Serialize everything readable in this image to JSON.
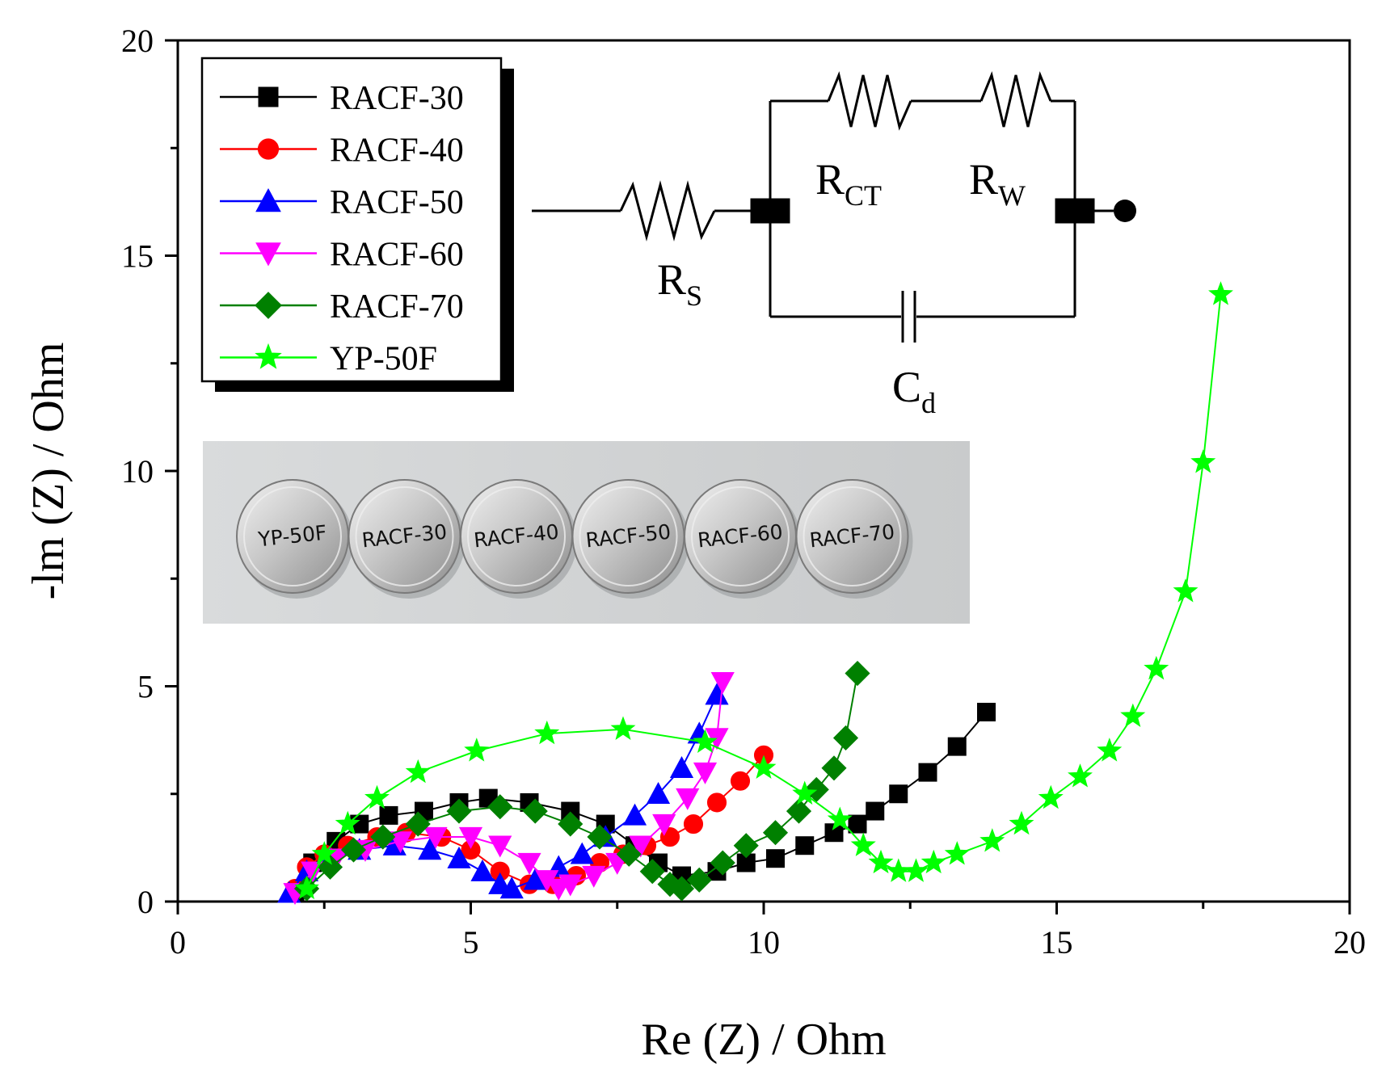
{
  "chart_data": {
    "type": "scatter",
    "title": "",
    "xlabel": "Re (Z) / Ohm",
    "ylabel": "-lm (Z) / Ohm",
    "xlim": [
      0,
      20
    ],
    "ylim": [
      0,
      20
    ],
    "xticks": [
      0,
      5,
      10,
      15,
      20
    ],
    "yticks": [
      0,
      5,
      10,
      15,
      20
    ],
    "xtick_labels": [
      "0",
      "5",
      "10",
      "15",
      "20"
    ],
    "ytick_labels": [
      "0",
      "5",
      "10",
      "15",
      "20"
    ],
    "grid": false,
    "legend_position": "top-left",
    "series": [
      {
        "name": "RACF-30",
        "color": "#000000",
        "marker": "square",
        "x": [
          2.0,
          2.3,
          2.7,
          3.1,
          3.6,
          4.2,
          4.8,
          5.3,
          6.0,
          6.7,
          7.3,
          7.8,
          8.2,
          8.6,
          9.2,
          9.7,
          10.2,
          10.7,
          11.2,
          11.6,
          11.9,
          12.3,
          12.8,
          13.3,
          13.8
        ],
        "y": [
          0.2,
          0.9,
          1.4,
          1.8,
          2.0,
          2.1,
          2.3,
          2.4,
          2.3,
          2.1,
          1.8,
          1.3,
          0.9,
          0.6,
          0.7,
          0.9,
          1.0,
          1.3,
          1.6,
          1.8,
          2.1,
          2.5,
          3.0,
          3.6,
          4.4
        ]
      },
      {
        "name": "RACF-40",
        "color": "#ff0000",
        "marker": "circle",
        "x": [
          2.0,
          2.2,
          2.5,
          2.9,
          3.4,
          3.9,
          4.5,
          5.0,
          5.5,
          6.0,
          6.4,
          6.8,
          7.2,
          7.6,
          8.0,
          8.4,
          8.8,
          9.2,
          9.6,
          10.0
        ],
        "y": [
          0.3,
          0.8,
          1.1,
          1.3,
          1.5,
          1.6,
          1.5,
          1.2,
          0.7,
          0.4,
          0.4,
          0.6,
          0.9,
          1.1,
          1.3,
          1.5,
          1.8,
          2.3,
          2.8,
          3.4
        ]
      },
      {
        "name": "RACF-50",
        "color": "#0000ff",
        "marker": "triangle-up",
        "x": [
          1.9,
          2.2,
          2.6,
          3.1,
          3.7,
          4.3,
          4.8,
          5.2,
          5.5,
          5.7,
          6.1,
          6.5,
          6.9,
          7.3,
          7.8,
          8.2,
          8.6,
          8.9,
          9.2
        ],
        "y": [
          0.2,
          0.7,
          1.0,
          1.2,
          1.3,
          1.2,
          1.0,
          0.7,
          0.4,
          0.3,
          0.5,
          0.8,
          1.1,
          1.5,
          2.0,
          2.5,
          3.1,
          3.9,
          4.8
        ]
      },
      {
        "name": "RACF-60",
        "color": "#ff00ff",
        "marker": "triangle-down",
        "x": [
          2.0,
          2.3,
          2.7,
          3.2,
          3.8,
          4.4,
          5.0,
          5.5,
          6.0,
          6.3,
          6.5,
          6.7,
          7.1,
          7.5,
          7.9,
          8.3,
          8.7,
          9.0,
          9.2,
          9.3
        ],
        "y": [
          0.2,
          0.7,
          1.0,
          1.2,
          1.4,
          1.5,
          1.5,
          1.3,
          0.9,
          0.5,
          0.3,
          0.4,
          0.6,
          0.9,
          1.3,
          1.8,
          2.4,
          3.0,
          3.8,
          5.1
        ]
      },
      {
        "name": "RACF-70",
        "color": "#008000",
        "marker": "diamond",
        "x": [
          2.2,
          2.6,
          3.0,
          3.5,
          4.1,
          4.8,
          5.5,
          6.1,
          6.7,
          7.2,
          7.7,
          8.1,
          8.4,
          8.6,
          8.9,
          9.3,
          9.7,
          10.2,
          10.6,
          10.9,
          11.2,
          11.4,
          11.6
        ],
        "y": [
          0.3,
          0.8,
          1.2,
          1.5,
          1.8,
          2.1,
          2.2,
          2.1,
          1.8,
          1.5,
          1.1,
          0.7,
          0.4,
          0.3,
          0.5,
          0.9,
          1.3,
          1.6,
          2.1,
          2.6,
          3.1,
          3.8,
          5.3
        ]
      },
      {
        "name": "YP-50F",
        "color": "#00ff00",
        "marker": "star",
        "x": [
          2.2,
          2.5,
          2.9,
          3.4,
          4.1,
          5.1,
          6.3,
          7.6,
          9.0,
          10.0,
          10.7,
          11.3,
          11.7,
          12.0,
          12.3,
          12.6,
          12.9,
          13.3,
          13.9,
          14.4,
          14.9,
          15.4,
          15.9,
          16.3,
          16.7,
          17.2,
          17.5,
          17.8
        ],
        "y": [
          0.3,
          1.1,
          1.8,
          2.4,
          3.0,
          3.5,
          3.9,
          4.0,
          3.7,
          3.1,
          2.5,
          1.9,
          1.3,
          0.9,
          0.7,
          0.7,
          0.9,
          1.1,
          1.4,
          1.8,
          2.4,
          2.9,
          3.5,
          4.3,
          5.4,
          7.2,
          10.2,
          14.1
        ]
      }
    ]
  },
  "inset_photo": {
    "coins": [
      "YP-50F",
      "RACF-30",
      "RACF-40",
      "RACF-50",
      "RACF-60",
      "RACF-70"
    ]
  },
  "circuit": {
    "rs": "R",
    "rs_sub": "S",
    "rct": "R",
    "rct_sub": "CT",
    "rw": "R",
    "rw_sub": "W",
    "cd": "C",
    "cd_sub": "d"
  }
}
